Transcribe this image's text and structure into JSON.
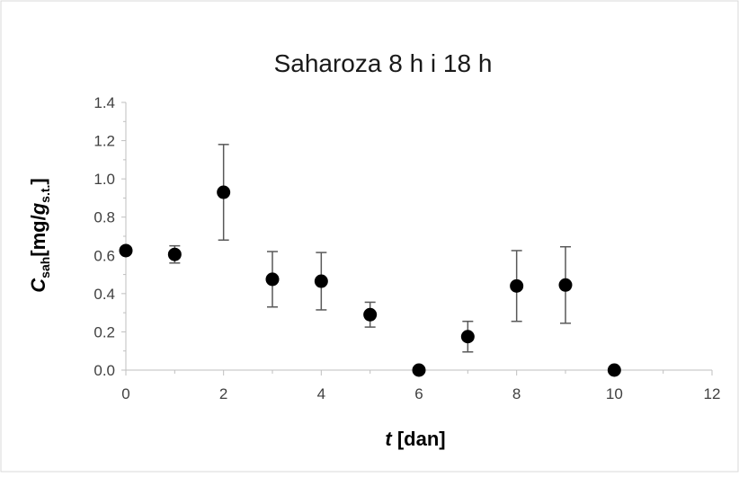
{
  "chart_data": {
    "type": "scatter",
    "title": "Saharoza 8 h i 18 h",
    "xlabel": {
      "italic": "t",
      "rest": " [dan]"
    },
    "ylabel": {
      "italic": "C",
      "sub1": "sah",
      "mid": "[mg/",
      "italic2": "g",
      "sub2": "s.t.",
      "end": "]"
    },
    "xlim": [
      0,
      12
    ],
    "ylim": [
      0.0,
      1.4
    ],
    "x_ticks": [
      "0",
      "2",
      "4",
      "6",
      "8",
      "10",
      "12"
    ],
    "y_ticks": [
      "0.0",
      "0.2",
      "0.4",
      "0.6",
      "0.8",
      "1.0",
      "1.2",
      "1.4"
    ],
    "grid": false,
    "legend": "none",
    "marker_color": "#000000",
    "errorbar_color": "#595959",
    "series": [
      {
        "points": [
          {
            "x": 0,
            "y": 0.625,
            "err": 0.0
          },
          {
            "x": 1,
            "y": 0.605,
            "err": 0.045
          },
          {
            "x": 2,
            "y": 0.93,
            "err": 0.25
          },
          {
            "x": 3,
            "y": 0.475,
            "err": 0.145
          },
          {
            "x": 4,
            "y": 0.465,
            "err": 0.15
          },
          {
            "x": 5,
            "y": 0.29,
            "err": 0.065
          },
          {
            "x": 6,
            "y": 0.0,
            "err": 0.0
          },
          {
            "x": 7,
            "y": 0.175,
            "err": 0.08
          },
          {
            "x": 8,
            "y": 0.44,
            "err": 0.185
          },
          {
            "x": 9,
            "y": 0.445,
            "err": 0.2
          },
          {
            "x": 10,
            "y": 0.0,
            "err": 0.0
          }
        ]
      }
    ]
  }
}
